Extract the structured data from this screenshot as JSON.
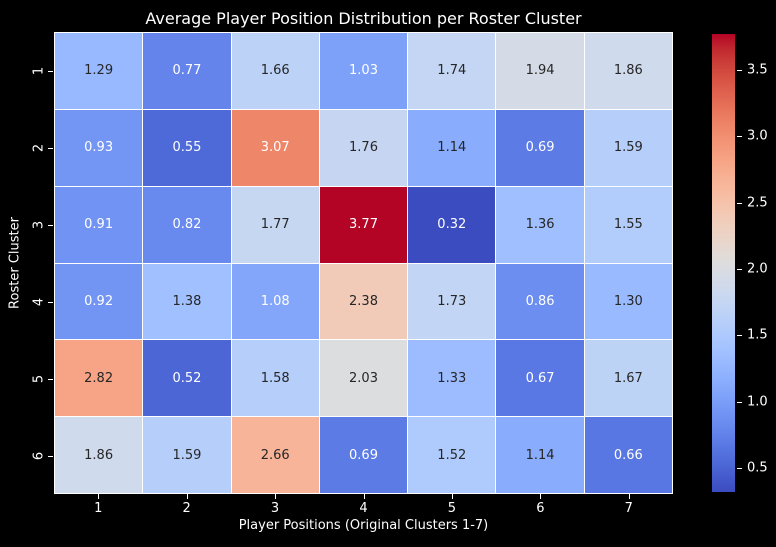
{
  "figure": {
    "background_color": "#000000",
    "text_color": "#ffffff"
  },
  "chart_data": {
    "type": "heatmap",
    "title": "Average Player Position Distribution per Roster Cluster",
    "xlabel": "Player Positions (Original Clusters 1-7)",
    "ylabel": "Roster Cluster",
    "x_ticklabels": [
      "1",
      "2",
      "3",
      "4",
      "5",
      "6",
      "7"
    ],
    "y_ticklabels": [
      "1",
      "2",
      "3",
      "4",
      "5",
      "6"
    ],
    "values": [
      [
        1.29,
        0.77,
        1.66,
        1.03,
        1.74,
        1.94,
        1.86
      ],
      [
        0.93,
        0.55,
        3.07,
        1.76,
        1.14,
        0.69,
        1.59
      ],
      [
        0.91,
        0.82,
        1.77,
        3.77,
        0.32,
        1.36,
        1.55
      ],
      [
        0.92,
        1.38,
        1.08,
        2.38,
        1.73,
        0.86,
        1.3
      ],
      [
        2.82,
        0.52,
        1.58,
        2.03,
        1.33,
        0.67,
        1.67
      ],
      [
        1.86,
        1.59,
        2.66,
        0.69,
        1.52,
        1.14,
        0.66
      ]
    ],
    "annotation_decimals": 2,
    "colormap": "coolwarm",
    "vmin": 0.32,
    "vmax": 3.77,
    "colorbar_ticks": [
      "0.5",
      "1.0",
      "1.5",
      "2.0",
      "2.5",
      "3.0",
      "3.5"
    ],
    "colorbar_position": "right",
    "grid_line_color": "#ffffff",
    "annot_dark_color": "#262626",
    "annot_light_color": "#ffffff",
    "grid_on": false
  }
}
